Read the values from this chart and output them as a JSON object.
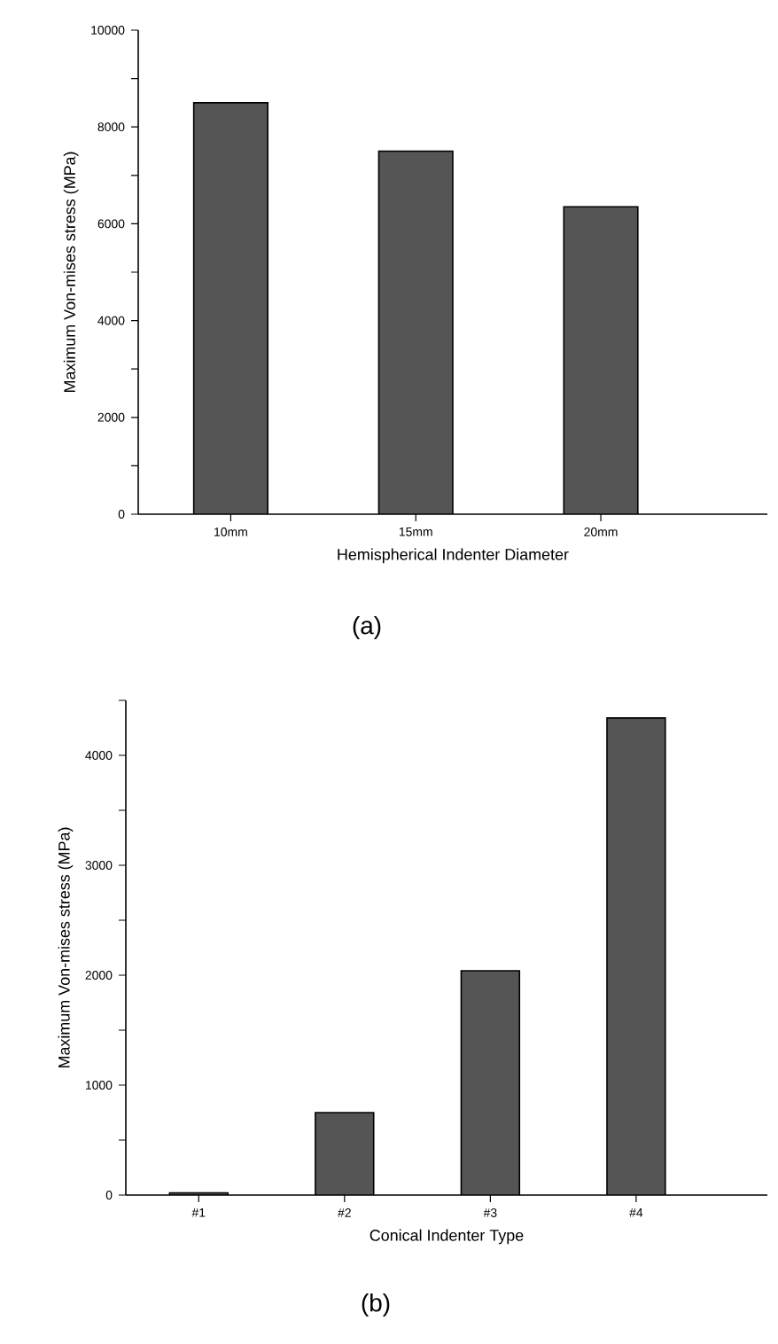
{
  "chart_data": [
    {
      "type": "bar",
      "xlabel": "Hemispherical Indenter Diameter",
      "ylabel": "Maximum Von-mises stress (MPa)",
      "categories": [
        "10mm",
        "15mm",
        "20mm"
      ],
      "values": [
        8500,
        7500,
        6350
      ],
      "color": "#555555",
      "ylim": [
        0,
        10000
      ],
      "yticks": [
        0,
        {
          "value": 1000,
          "label": null
        },
        2000,
        {
          "value": 3000,
          "label": null
        },
        4000,
        {
          "value": 5000,
          "label": null
        },
        6000,
        {
          "value": 7000,
          "label": null
        },
        8000,
        {
          "value": 9000,
          "label": null
        },
        10000
      ],
      "annotations": [
        "(a)"
      ]
    },
    {
      "type": "bar",
      "xlabel": "Conical Indenter Type",
      "ylabel": "Maximum Von-mises stress (MPa)",
      "categories": [
        "#1",
        "#2",
        "#3",
        "#4"
      ],
      "values": [
        20,
        750,
        2040,
        4340
      ],
      "color": "#555555",
      "ylim": [
        0,
        4500
      ],
      "yticks": [
        0,
        {
          "value": 500,
          "label": null
        },
        1000,
        {
          "value": 1500,
          "label": null
        },
        2000,
        {
          "value": 2500,
          "label": null
        },
        3000,
        {
          "value": 3500,
          "label": null
        },
        4000,
        {
          "value": 4500,
          "label": null
        }
      ],
      "annotations": [
        "(b)"
      ]
    }
  ]
}
